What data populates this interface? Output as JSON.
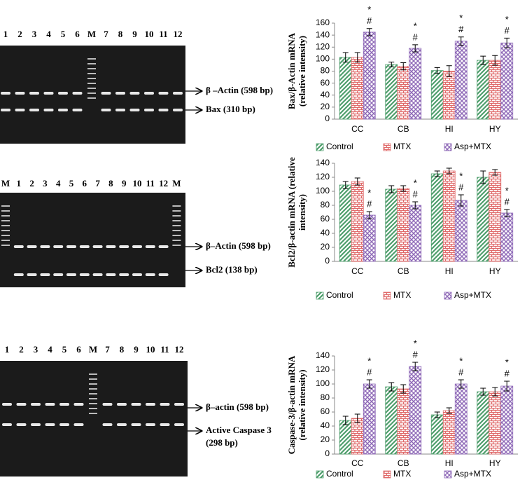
{
  "gels": [
    {
      "lanes": [
        "1",
        "2",
        "3",
        "4",
        "5",
        "6",
        "M",
        "7",
        "8",
        "9",
        "10",
        "11",
        "12"
      ],
      "bands": [
        "β –Actin (598 bp)",
        "Bax (310 bp)"
      ]
    },
    {
      "lanes": [
        "M",
        "1",
        "2",
        "3",
        "4",
        "5",
        "6",
        "7",
        "8",
        "9",
        "10",
        "11",
        "12",
        "M"
      ],
      "bands": [
        "β–Actin (598 bp)",
        "Bcl2 (138 bp)"
      ]
    },
    {
      "lanes": [
        "1",
        "2",
        "3",
        "4",
        "5",
        "6",
        "M",
        "7",
        "8",
        "9",
        "10",
        "11",
        "12"
      ],
      "bands": [
        "β–actin (598 bp)",
        "Active Caspase 3",
        "(298 bp)"
      ]
    }
  ],
  "chart_data": [
    {
      "type": "bar",
      "ylabel": [
        "Bax/β-Actin mRNA",
        "(relative intensity)"
      ],
      "categories": [
        "CC",
        "CB",
        "HI",
        "HY"
      ],
      "ylim": [
        0,
        160
      ],
      "yticks": [
        0,
        20,
        40,
        60,
        80,
        100,
        120,
        140,
        160
      ],
      "series": [
        {
          "name": "Control",
          "color": "#4e9e6c",
          "values": [
            103,
            91,
            81,
            98
          ],
          "errors": [
            8,
            4,
            5,
            7
          ]
        },
        {
          "name": "MTX",
          "color": "#e06a6a",
          "values": [
            103,
            88,
            80,
            98
          ],
          "errors": [
            8,
            6,
            9,
            8
          ]
        },
        {
          "name": "Asp+MTX",
          "color": "#8f6ab8",
          "values": [
            145,
            118,
            130,
            127
          ],
          "errors": [
            6,
            6,
            7,
            8
          ],
          "annotations": [
            [
              "*",
              "#"
            ],
            [
              "*",
              "#"
            ],
            [
              "*",
              "#"
            ],
            [
              "*",
              "#"
            ]
          ]
        }
      ]
    },
    {
      "type": "bar",
      "ylabel": [
        "Bcl2/β-actin mRNA (relative",
        "intensity)"
      ],
      "categories": [
        "CC",
        "CB",
        "HI",
        "HY"
      ],
      "ylim": [
        0,
        140
      ],
      "yticks": [
        0,
        20,
        40,
        60,
        80,
        100,
        120,
        140
      ],
      "series": [
        {
          "name": "Control",
          "color": "#4e9e6c",
          "values": [
            109,
            103,
            125,
            120
          ],
          "errors": [
            5,
            5,
            4,
            9
          ]
        },
        {
          "name": "MTX",
          "color": "#e06a6a",
          "values": [
            114,
            104,
            129,
            127
          ],
          "errors": [
            5,
            4,
            4,
            4
          ]
        },
        {
          "name": "Asp+MTX",
          "color": "#8f6ab8",
          "values": [
            66,
            80,
            87,
            69
          ],
          "errors": [
            5,
            5,
            8,
            5
          ],
          "annotations": [
            [
              "*",
              "#"
            ],
            [
              "*",
              "#"
            ],
            [
              "*",
              "#"
            ],
            [
              "*",
              "#"
            ]
          ]
        }
      ]
    },
    {
      "type": "bar",
      "ylabel": [
        "Caspase-3/β-actin mRNA",
        "(relative intensity)"
      ],
      "categories": [
        "CC",
        "CB",
        "HI",
        "HY"
      ],
      "ylim": [
        0,
        140
      ],
      "yticks": [
        0,
        20,
        40,
        60,
        80,
        100,
        120,
        140
      ],
      "series": [
        {
          "name": "Control",
          "color": "#4e9e6c",
          "values": [
            48,
            96,
            56,
            89
          ],
          "errors": [
            6,
            6,
            4,
            5
          ]
        },
        {
          "name": "MTX",
          "color": "#e06a6a",
          "values": [
            51,
            93,
            62,
            89
          ],
          "errors": [
            6,
            6,
            4,
            6
          ]
        },
        {
          "name": "Asp+MTX",
          "color": "#8f6ab8",
          "values": [
            100,
            125,
            100,
            97
          ],
          "errors": [
            6,
            6,
            6,
            7
          ],
          "annotations": [
            [
              "*",
              "#"
            ],
            [
              "*",
              "#"
            ],
            [
              "*",
              "#"
            ],
            [
              "*",
              "#"
            ]
          ]
        }
      ]
    }
  ]
}
